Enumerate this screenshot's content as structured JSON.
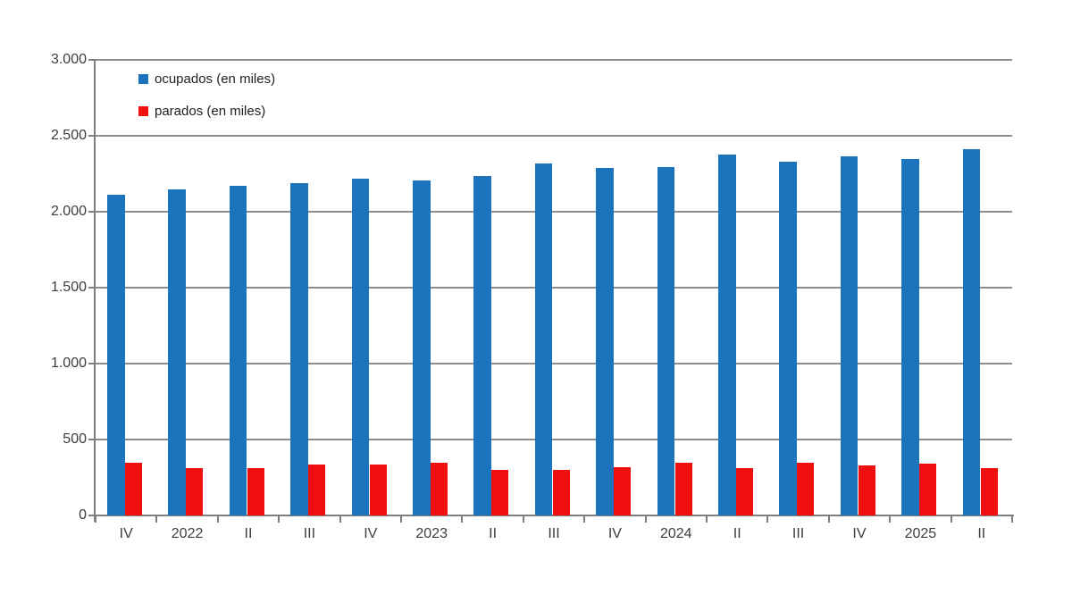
{
  "chart_data": {
    "type": "bar",
    "categories": [
      "IV",
      "2022",
      "II",
      "III",
      "IV",
      "2023",
      "II",
      "III",
      "IV",
      "2024",
      "II",
      "III",
      "IV",
      "2025",
      "II"
    ],
    "series": [
      {
        "name": "ocupados (en miles)",
        "color": "#1b74bc",
        "values": [
          2110,
          2150,
          2170,
          2190,
          2215,
          2205,
          2235,
          2320,
          2290,
          2295,
          2375,
          2330,
          2365,
          2350,
          2410
        ]
      },
      {
        "name": "parados (en miles)",
        "color": "#f00f0f",
        "values": [
          350,
          310,
          310,
          335,
          335,
          345,
          300,
          300,
          320,
          350,
          310,
          345,
          330,
          340,
          310
        ]
      }
    ],
    "title": "",
    "xlabel": "",
    "ylabel": "",
    "ylim": [
      0,
      3000
    ],
    "ytick_step": 500,
    "ytick_labels": [
      "0",
      "500",
      "1.000",
      "1.500",
      "2.000",
      "2.500",
      "3.000"
    ],
    "grid": true,
    "legend_position": "top-left-inside"
  },
  "legend": {
    "items": [
      {
        "label": "ocupados (en miles)",
        "color": "#1b74bc"
      },
      {
        "label": "parados (en miles)",
        "color": "#f00f0f"
      }
    ]
  },
  "colors": {
    "grid": "#8c8c8c",
    "axis": "#7f7f7f",
    "text": "#3d3d3d",
    "background": "#ffffff"
  }
}
